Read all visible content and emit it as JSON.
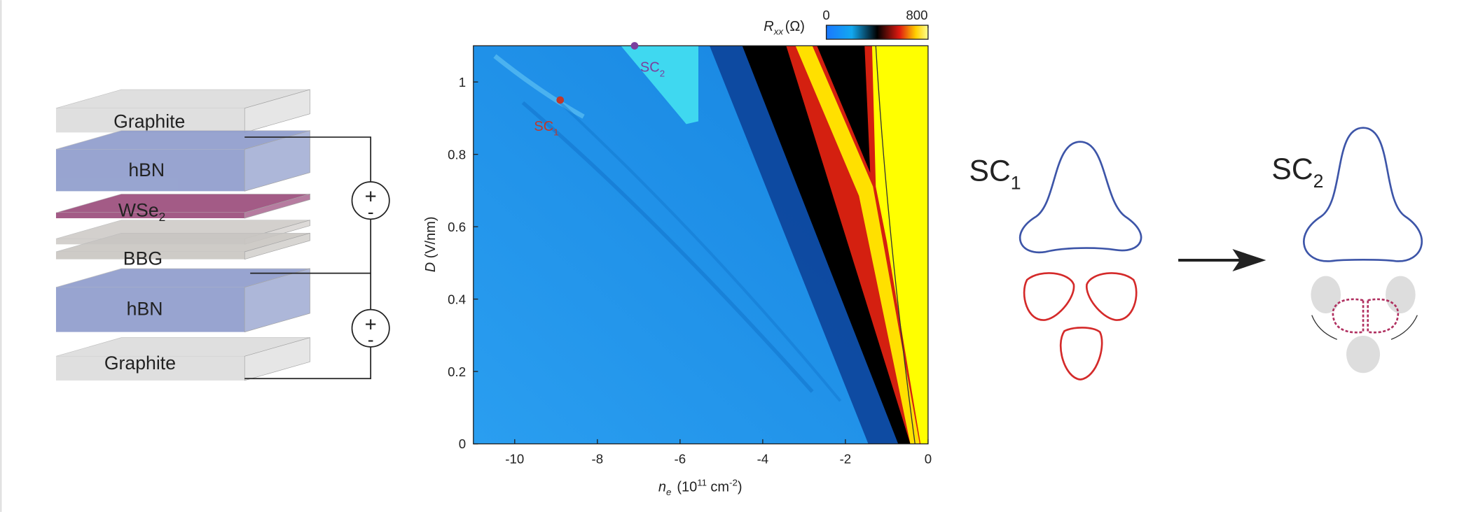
{
  "schematic": {
    "layers": [
      {
        "label": "Graphite"
      },
      {
        "label": "hBN"
      },
      {
        "label": "WSe",
        "sub": "2"
      },
      {
        "label": "BBG"
      },
      {
        "label": "hBN"
      },
      {
        "label": "Graphite"
      }
    ],
    "sources": [
      {
        "plus": "+",
        "minus": "-"
      },
      {
        "plus": "+",
        "minus": "-"
      }
    ]
  },
  "chart_data": {
    "type": "heatmap",
    "x_label": {
      "symbol": "n",
      "sub": "e",
      "unit": "(10",
      "unit_exp": "11",
      "unit2": "cm",
      "unit2_exp": "-2",
      "close": ")"
    },
    "y_label": {
      "symbol": "D",
      "unit": "(V/nm)"
    },
    "xlim": [
      -11,
      0
    ],
    "xticks": [
      -10,
      -8,
      -6,
      -4,
      -2,
      0
    ],
    "ylim": [
      0,
      1.1
    ],
    "yticks": [
      0,
      0.2,
      0.4,
      0.6,
      0.8,
      1
    ],
    "colorbar": {
      "symbol": "R",
      "sub": "xx",
      "unit": "(Ω)",
      "clim": [
        0,
        800
      ],
      "ticks": [
        0,
        800
      ]
    },
    "points": [
      {
        "label": "SC",
        "sub": "1",
        "x": -8.9,
        "y": 0.95,
        "color": "#c0392b"
      },
      {
        "label": "SC",
        "sub": "2",
        "x": -7.1,
        "y": 1.1,
        "color": "#7b3f9e"
      }
    ]
  },
  "diagram": {
    "left": {
      "label": "SC",
      "sub": "1"
    },
    "right": {
      "label": "SC",
      "sub": "2"
    }
  }
}
